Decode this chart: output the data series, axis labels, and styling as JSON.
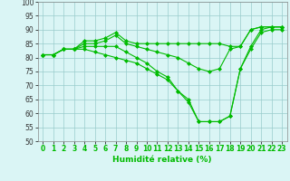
{
  "x": [
    0,
    1,
    2,
    3,
    4,
    5,
    6,
    7,
    8,
    9,
    10,
    11,
    12,
    13,
    14,
    15,
    16,
    17,
    18,
    19,
    20,
    21,
    22,
    23
  ],
  "line1": [
    81,
    81,
    83,
    83,
    86,
    86,
    87,
    89,
    86,
    85,
    85,
    85,
    85,
    85,
    85,
    85,
    85,
    85,
    84,
    84,
    90,
    91,
    91,
    91
  ],
  "line2": [
    81,
    81,
    83,
    83,
    85,
    85,
    86,
    88,
    85,
    84,
    83,
    82,
    81,
    80,
    78,
    76,
    75,
    76,
    83,
    84,
    90,
    91,
    91,
    91
  ],
  "line3": [
    81,
    81,
    83,
    83,
    84,
    84,
    84,
    84,
    82,
    80,
    78,
    75,
    73,
    68,
    65,
    57,
    57,
    57,
    59,
    76,
    84,
    90,
    91,
    91
  ],
  "line4": [
    81,
    81,
    83,
    83,
    83,
    82,
    81,
    80,
    79,
    78,
    76,
    74,
    72,
    68,
    64,
    57,
    57,
    57,
    59,
    76,
    83,
    89,
    90,
    90
  ],
  "xlabel": "Humidité relative (%)",
  "ylim": [
    50,
    100
  ],
  "xlim": [
    -0.5,
    23.5
  ],
  "yticks": [
    50,
    55,
    60,
    65,
    70,
    75,
    80,
    85,
    90,
    95,
    100
  ],
  "xticks": [
    0,
    1,
    2,
    3,
    4,
    5,
    6,
    7,
    8,
    9,
    10,
    11,
    12,
    13,
    14,
    15,
    16,
    17,
    18,
    19,
    20,
    21,
    22,
    23
  ],
  "line_color": "#00bb00",
  "bg_color": "#daf5f5",
  "grid_color": "#99cccc",
  "marker": "D",
  "markersize": 2.0,
  "linewidth": 0.8,
  "tick_fontsize": 5.5,
  "xlabel_fontsize": 6.5
}
